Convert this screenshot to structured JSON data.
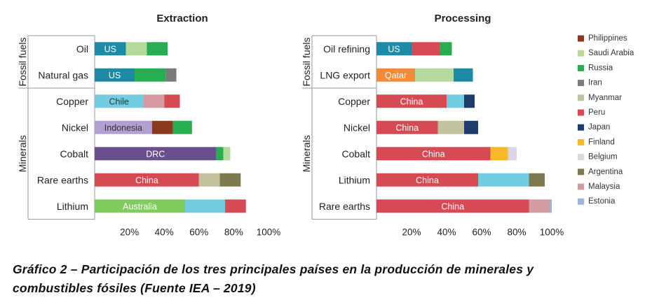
{
  "chart_data": [
    {
      "type": "bar",
      "orientation": "horizontal",
      "stacked": true,
      "title": "Extraction",
      "xlim": [
        0,
        100
      ],
      "xticks": [
        "20%",
        "40%",
        "60%",
        "80%",
        "100%"
      ],
      "tick_values": [
        20,
        40,
        60,
        80,
        100
      ],
      "groups": [
        {
          "label": "Fossil fuels",
          "categories": [
            "Oil",
            "Natural gas"
          ]
        },
        {
          "label": "Minerals",
          "categories": [
            "Copper",
            "Nickel",
            "Cobalt",
            "Rare earths",
            "Lithium"
          ]
        }
      ],
      "rows": [
        {
          "category": "Oil",
          "segments": [
            {
              "country": "US",
              "value": 18,
              "label": "US"
            },
            {
              "country": "Saudi Arabia",
              "value": 12
            },
            {
              "country": "Russia",
              "value": 12
            }
          ]
        },
        {
          "category": "Natural gas",
          "segments": [
            {
              "country": "US",
              "value": 23,
              "label": "US"
            },
            {
              "country": "Russia",
              "value": 18
            },
            {
              "country": "Iran",
              "value": 6
            }
          ]
        },
        {
          "category": "Copper",
          "segments": [
            {
              "country": "Chile",
              "value": 28,
              "label": "Chile"
            },
            {
              "country": "Malaysia",
              "value": 12
            },
            {
              "country": "Peru",
              "value": 9
            }
          ]
        },
        {
          "category": "Nickel",
          "segments": [
            {
              "country": "Indonesia",
              "value": 33,
              "label": "Indonesia"
            },
            {
              "country": "Philippines",
              "value": 12
            },
            {
              "country": "Russia",
              "value": 11
            }
          ]
        },
        {
          "category": "Cobalt",
          "segments": [
            {
              "country": "DRC",
              "value": 70,
              "label": "DRC"
            },
            {
              "country": "Russia",
              "value": 4
            },
            {
              "country": "Saudi Arabia",
              "value": 4
            }
          ]
        },
        {
          "category": "Rare earths",
          "segments": [
            {
              "country": "China",
              "value": 60,
              "label": "China"
            },
            {
              "country": "Myanmar",
              "value": 12
            },
            {
              "country": "Argentina",
              "value": 12
            }
          ]
        },
        {
          "category": "Lithium",
          "segments": [
            {
              "country": "Australia",
              "value": 52,
              "label": "Australia"
            },
            {
              "country": "Chile",
              "value": 23
            },
            {
              "country": "China",
              "value": 12
            }
          ]
        }
      ]
    },
    {
      "type": "bar",
      "orientation": "horizontal",
      "stacked": true,
      "title": "Processing",
      "xlim": [
        0,
        100
      ],
      "xticks": [
        "20%",
        "40%",
        "60%",
        "80%",
        "100%"
      ],
      "tick_values": [
        20,
        40,
        60,
        80,
        100
      ],
      "groups": [
        {
          "label": "Fossil fuels",
          "categories": [
            "Oil refining",
            "LNG export"
          ]
        },
        {
          "label": "Minerals",
          "categories": [
            "Copper",
            "Nickel",
            "Cobalt",
            "Lithium",
            "Rare earths"
          ]
        }
      ],
      "rows": [
        {
          "category": "Oil refining",
          "segments": [
            {
              "country": "US",
              "value": 20,
              "label": "US"
            },
            {
              "country": "Peru",
              "value": 16
            },
            {
              "country": "Russia",
              "value": 7
            }
          ]
        },
        {
          "category": "LNG export",
          "segments": [
            {
              "country": "Qatar",
              "value": 22,
              "label": "Qatar"
            },
            {
              "country": "Saudi Arabia",
              "value": 22
            },
            {
              "country": "US",
              "value": 11
            }
          ]
        },
        {
          "category": "Copper",
          "segments": [
            {
              "country": "China",
              "value": 40,
              "label": "China"
            },
            {
              "country": "Chile",
              "value": 10
            },
            {
              "country": "Japan",
              "value": 6
            }
          ]
        },
        {
          "category": "Nickel",
          "segments": [
            {
              "country": "China",
              "value": 35,
              "label": "China"
            },
            {
              "country": "Myanmar",
              "value": 15
            },
            {
              "country": "Japan",
              "value": 8
            }
          ]
        },
        {
          "category": "Cobalt",
          "segments": [
            {
              "country": "China",
              "value": 65,
              "label": "China"
            },
            {
              "country": "Finland",
              "value": 10
            },
            {
              "country": "Belgium",
              "value": 5
            }
          ]
        },
        {
          "category": "Lithium",
          "segments": [
            {
              "country": "China",
              "value": 58,
              "label": "China"
            },
            {
              "country": "Chile",
              "value": 29
            },
            {
              "country": "Argentina",
              "value": 9
            }
          ]
        },
        {
          "category": "Rare earths",
          "segments": [
            {
              "country": "China",
              "value": 87,
              "label": "China"
            },
            {
              "country": "Malaysia",
              "value": 12
            },
            {
              "country": "Estonia",
              "value": 1
            }
          ]
        }
      ]
    }
  ],
  "legend": {
    "placement": "right",
    "items": [
      {
        "name": "Philippines",
        "color": "#8b3a1f"
      },
      {
        "name": "Saudi Arabia",
        "color": "#b4db9c"
      },
      {
        "name": "Russia",
        "color": "#27ae51"
      },
      {
        "name": "Iran",
        "color": "#7a7a7a"
      },
      {
        "name": "Myanmar",
        "color": "#c2c29e"
      },
      {
        "name": "Peru",
        "color": "#d64a53"
      },
      {
        "name": "Japan",
        "color": "#1c3d6e"
      },
      {
        "name": "Finland",
        "color": "#f9b829"
      },
      {
        "name": "Belgium",
        "color": "#dcd6e4"
      },
      {
        "name": "Argentina",
        "color": "#7d7a4f"
      },
      {
        "name": "Malaysia",
        "color": "#d49ca0"
      },
      {
        "name": "Estonia",
        "color": "#9bb7df"
      }
    ]
  },
  "country_colors": {
    "US": "#1d8aa6",
    "Chile": "#72cde0",
    "Indonesia": "#b39fd1",
    "DRC": "#6a4f8c",
    "China": "#d64a53",
    "Australia": "#7fcc5f",
    "Qatar": "#f28a3a",
    "Philippines": "#8b3a1f",
    "Saudi Arabia": "#b4db9c",
    "Russia": "#27ae51",
    "Iran": "#7a7a7a",
    "Myanmar": "#c2c29e",
    "Peru": "#d64a53",
    "Japan": "#1c3d6e",
    "Finland": "#f9b829",
    "Belgium": "#dcd6e4",
    "Argentina": "#7d7a4f",
    "Malaysia": "#d49ca0",
    "Estonia": "#9bb7df"
  },
  "caption": {
    "line1": "Gráfico 2 – Participación de los tres principales países en la producción de minerales y",
    "line2": "combustibles fósiles (Fuente IEA – 2019)"
  }
}
